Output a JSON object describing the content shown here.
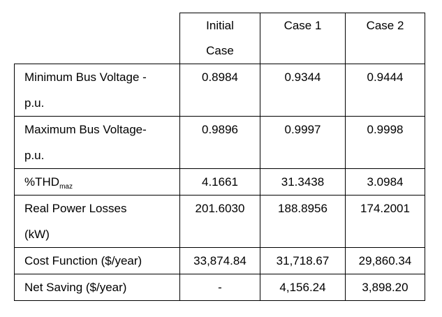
{
  "table": {
    "headers": {
      "initial_line1": "Initial",
      "initial_line2": "Case",
      "case1": "Case 1",
      "case2": "Case 2"
    },
    "rows": [
      {
        "label_line1": "Minimum Bus Voltage -",
        "label_line2": "p.u.",
        "initial": "0.8984",
        "case1": "0.9344",
        "case2": "0.9444"
      },
      {
        "label_line1": "Maximum Bus Voltage-",
        "label_line2": "p.u.",
        "initial": "0.9896",
        "case1": "0.9997",
        "case2": "0.9998"
      },
      {
        "label_main": "%THD",
        "label_sub": "maz",
        "initial": "4.1661",
        "case1": "31.3438",
        "case2": "3.0984"
      },
      {
        "label_line1": "Real Power Losses",
        "label_line2": "(kW)",
        "initial": "201.6030",
        "case1": "188.8956",
        "case2": "174.2001"
      },
      {
        "label": "Cost Function ($/year)",
        "initial": "33,874.84",
        "case1": "31,718.67",
        "case2": "29,860.34"
      },
      {
        "label": "Net Saving ($/year)",
        "initial": "-",
        "case1": "4,156.24",
        "case2": "3,898.20"
      }
    ]
  }
}
